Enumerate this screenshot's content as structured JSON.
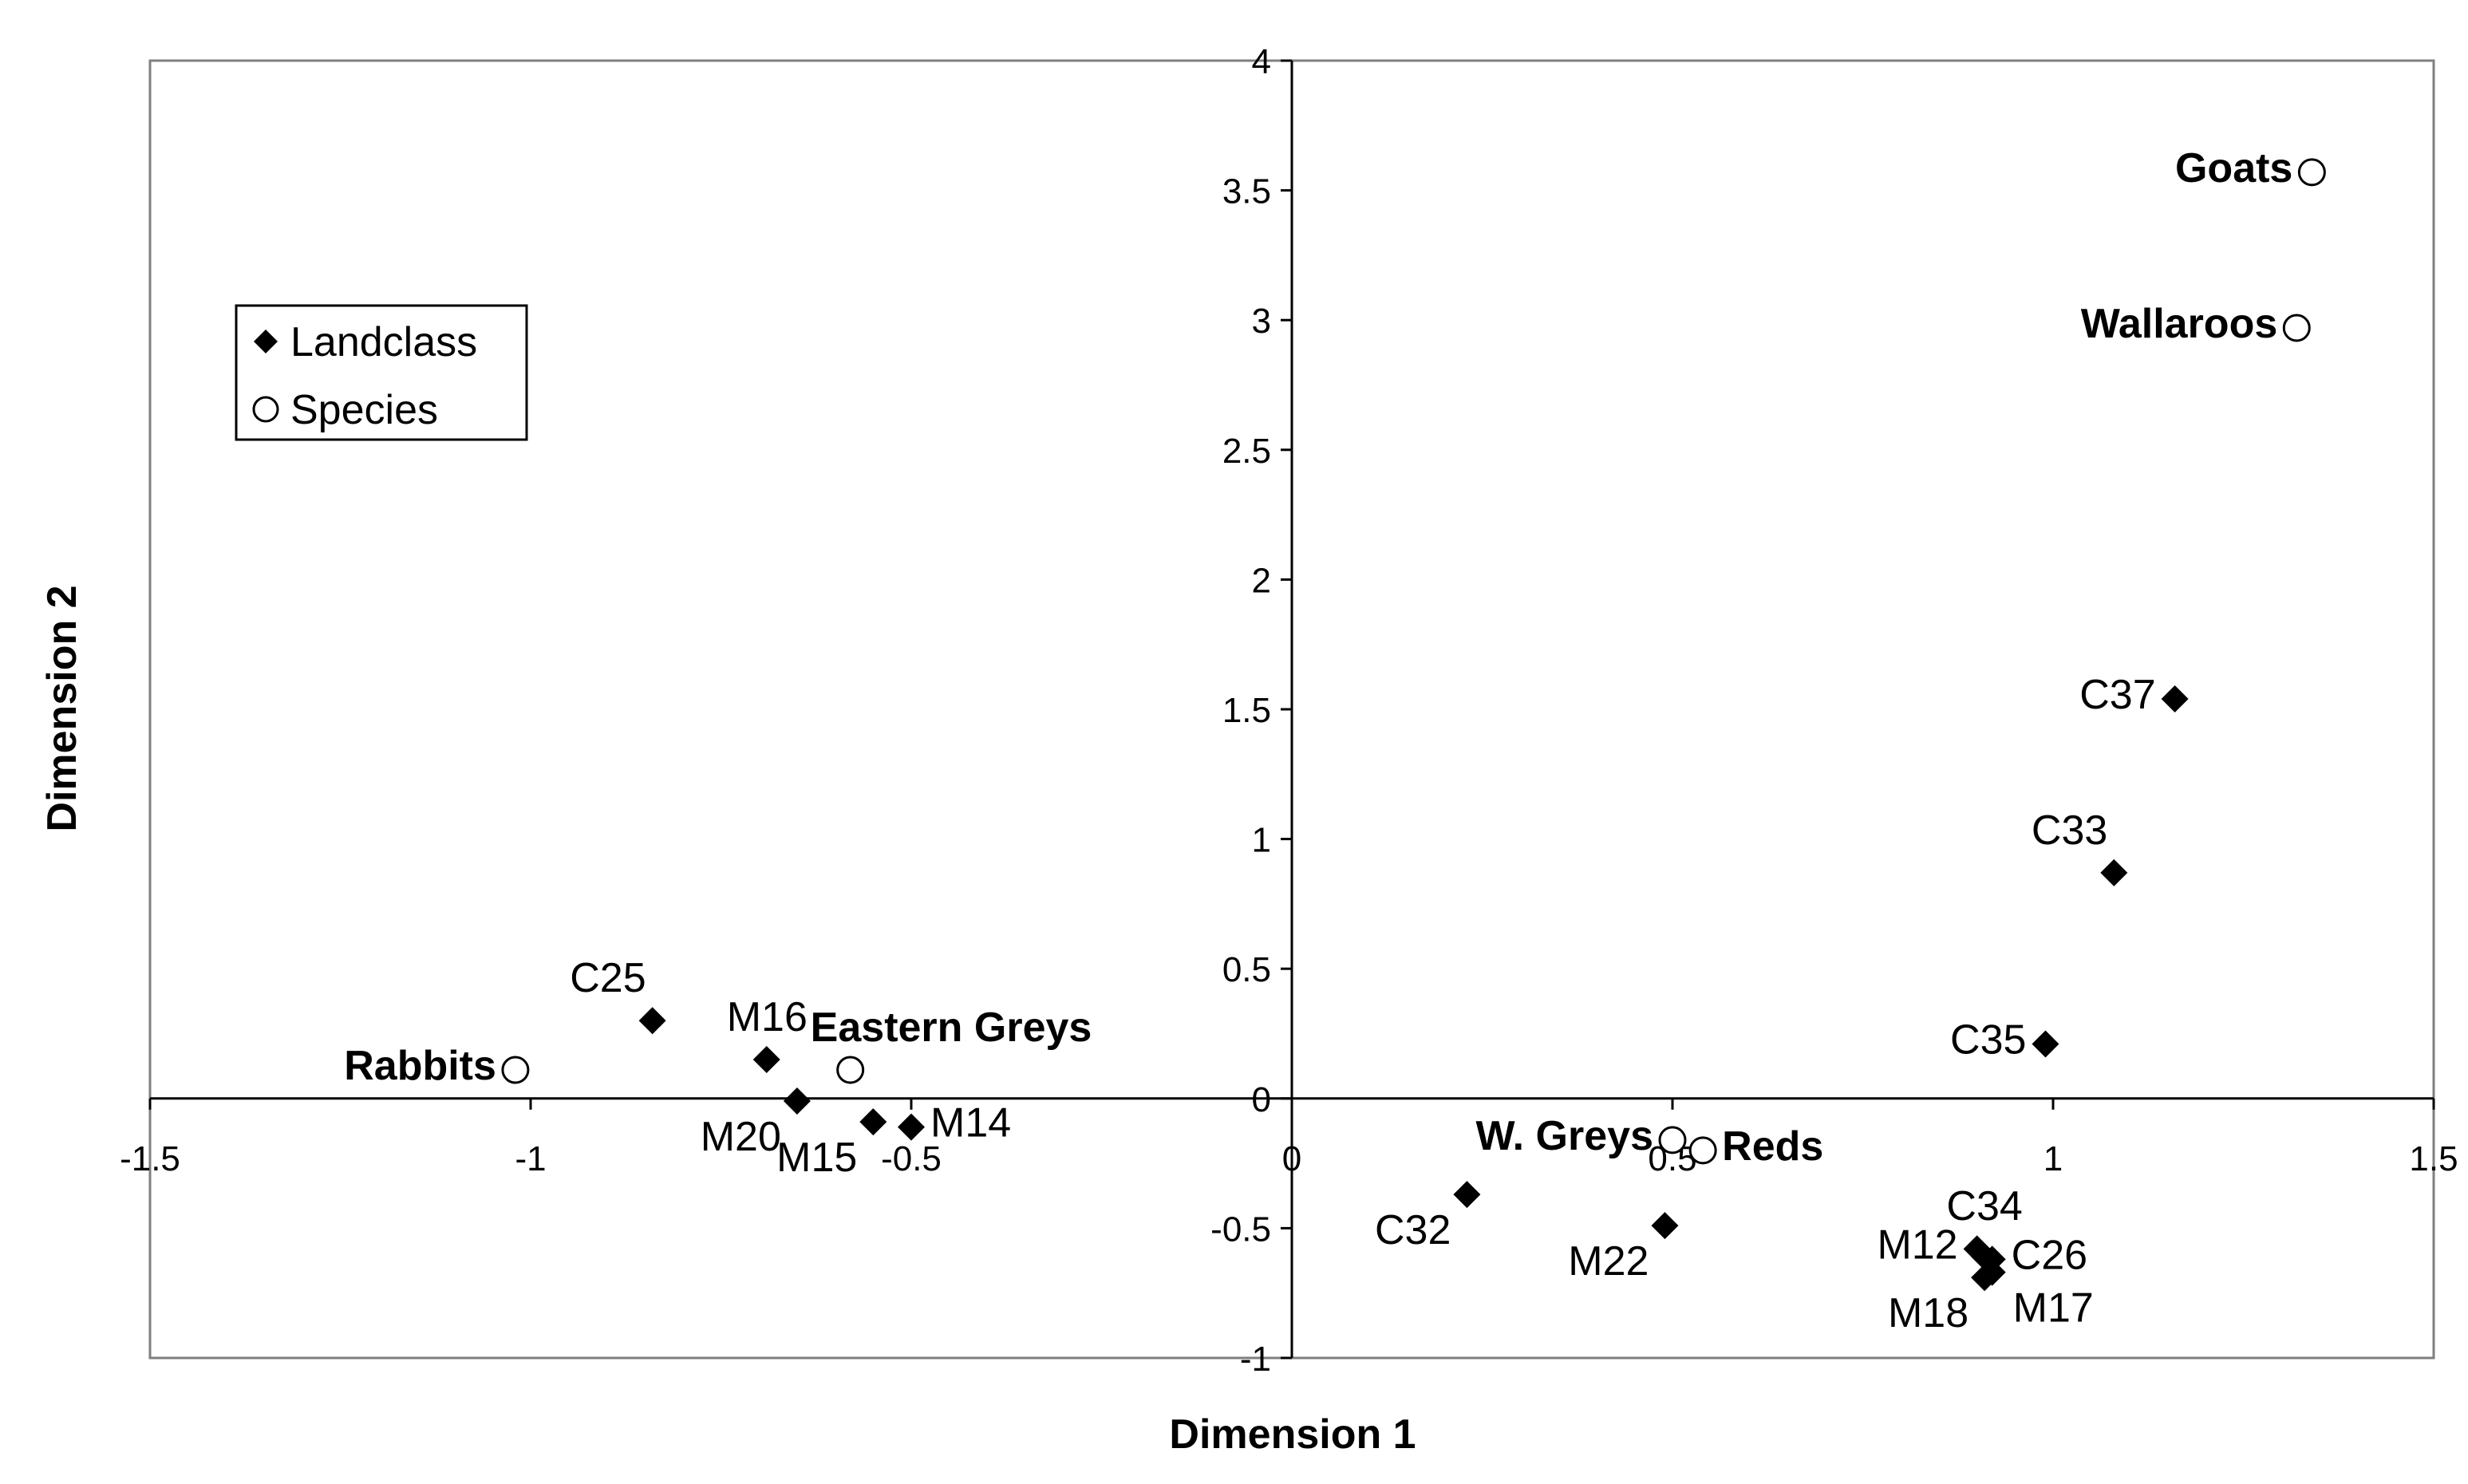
{
  "chart_data": {
    "type": "scatter",
    "title": "",
    "xlabel": "Dimension  1",
    "ylabel": "Dimension  2",
    "xlim": [
      -1.5,
      1.5
    ],
    "ylim": [
      -1,
      4
    ],
    "x_ticks": [
      -1.5,
      -1,
      -0.5,
      0,
      0.5,
      1,
      1.5
    ],
    "x_tick_labels": [
      "-1.5",
      "-1",
      "-0.5",
      "0",
      "0.5",
      "1",
      "1.5"
    ],
    "y_ticks": [
      -1,
      -0.5,
      0,
      0.5,
      1,
      1.5,
      2,
      2.5,
      3,
      3.5,
      4
    ],
    "y_tick_labels": [
      "-1",
      "-0.5",
      "0",
      "0.5",
      "1",
      "1.5",
      "2",
      "2.5",
      "3",
      "3.5",
      "4"
    ],
    "grid": false,
    "legend": {
      "position": "upper-left",
      "entries": [
        {
          "name": "Landclass",
          "marker": "filled-diamond"
        },
        {
          "name": "Species",
          "marker": "open-circle"
        }
      ]
    },
    "series": [
      {
        "name": "Landclass",
        "marker": "filled-diamond",
        "points": [
          {
            "label": "C25",
            "x": -0.84,
            "y": 0.3,
            "label_pos": "top-left"
          },
          {
            "label": "M16",
            "x": -0.69,
            "y": 0.15,
            "label_pos": "top-right"
          },
          {
            "label": "M20",
            "x": -0.65,
            "y": -0.01,
            "label_pos": "bottom-left"
          },
          {
            "label": "M15",
            "x": -0.55,
            "y": -0.09,
            "label_pos": "bottom-left"
          },
          {
            "label": "M14",
            "x": -0.5,
            "y": -0.11,
            "label_pos": "right"
          },
          {
            "label": "C32",
            "x": 0.23,
            "y": -0.37,
            "label_pos": "bottom-left"
          },
          {
            "label": "M22",
            "x": 0.49,
            "y": -0.49,
            "label_pos": "bottom-left"
          },
          {
            "label": "M12",
            "x": 0.9,
            "y": -0.58,
            "label_pos": "left"
          },
          {
            "label": "C34",
            "x": 0.91,
            "y": -0.61,
            "label_pos": "top"
          },
          {
            "label": "C26",
            "x": 0.92,
            "y": -0.62,
            "label_pos": "right"
          },
          {
            "label": "M18",
            "x": 0.91,
            "y": -0.69,
            "label_pos": "bottom-left"
          },
          {
            "label": "M17",
            "x": 0.92,
            "y": -0.67,
            "label_pos": "bottom-right"
          },
          {
            "label": "C35",
            "x": 0.99,
            "y": 0.21,
            "label_pos": "left"
          },
          {
            "label": "C33",
            "x": 1.08,
            "y": 0.87,
            "label_pos": "top-left"
          },
          {
            "label": "C37",
            "x": 1.16,
            "y": 1.54,
            "label_pos": "left"
          }
        ]
      },
      {
        "name": "Species",
        "marker": "open-circle",
        "points": [
          {
            "label": "Rabbits",
            "x": -1.02,
            "y": 0.11,
            "label_pos": "left",
            "bold": true
          },
          {
            "label": "Eastern Greys",
            "x": -0.58,
            "y": 0.11,
            "label_pos": "top-right",
            "bold": true
          },
          {
            "label": "W. Greys",
            "x": 0.5,
            "y": -0.16,
            "label_pos": "left",
            "bold": true
          },
          {
            "label": "Reds",
            "x": 0.54,
            "y": -0.2,
            "label_pos": "right",
            "bold": true
          },
          {
            "label": "Wallaroos",
            "x": 1.32,
            "y": 2.97,
            "label_pos": "left",
            "bold": true
          },
          {
            "label": "Goats",
            "x": 1.34,
            "y": 3.57,
            "label_pos": "left",
            "bold": true
          }
        ]
      }
    ]
  }
}
